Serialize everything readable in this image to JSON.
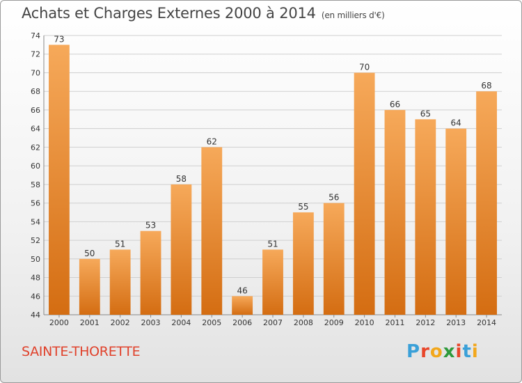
{
  "header": {
    "title": "Achats et Charges Externes 2000 à 2014",
    "unit": "(en milliers d'€)"
  },
  "footer": {
    "commune": "SAINTE-THORETTE",
    "logo": {
      "letters": [
        "P",
        "r",
        "o",
        "x",
        "i",
        "t",
        "i"
      ],
      "colors": [
        "#3aa0d8",
        "#e8462a",
        "#f2a71b",
        "#2e9a3c",
        "#e8462a",
        "#3aa0d8",
        "#f2a71b"
      ]
    }
  },
  "colors": {
    "bar_light": "#f6a95a",
    "bar_dark": "#d46d12",
    "grid": "#cfcfcf"
  },
  "chart_data": {
    "type": "bar",
    "categories": [
      "2000",
      "2001",
      "2002",
      "2003",
      "2004",
      "2005",
      "2006",
      "2007",
      "2008",
      "2009",
      "2010",
      "2011",
      "2012",
      "2013",
      "2014"
    ],
    "values": [
      73,
      50,
      51,
      53,
      58,
      62,
      46,
      51,
      55,
      56,
      70,
      66,
      65,
      64,
      68
    ],
    "ylim": [
      44,
      74
    ],
    "yticks": [
      44,
      46,
      48,
      50,
      52,
      54,
      56,
      58,
      60,
      62,
      64,
      66,
      68,
      70,
      72,
      74
    ],
    "grid": true
  }
}
